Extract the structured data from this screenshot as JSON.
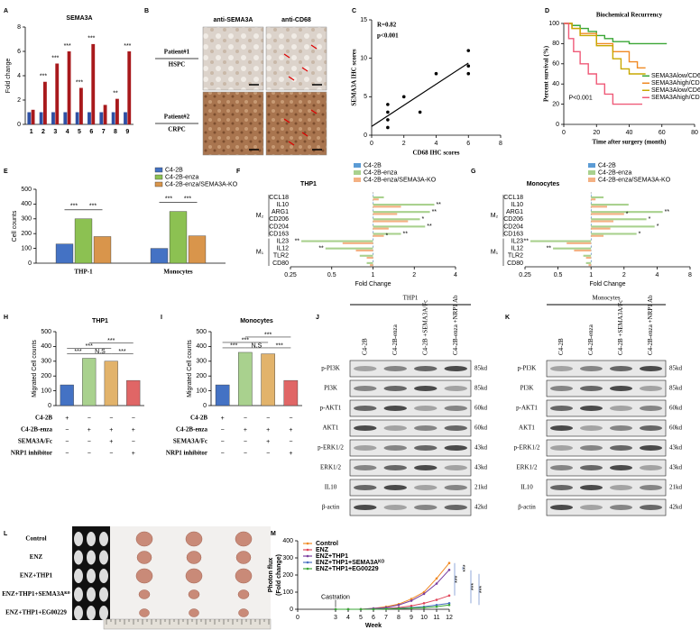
{
  "panel_letters": [
    "A",
    "B",
    "C",
    "D",
    "E",
    "F",
    "G",
    "H",
    "I",
    "J",
    "K",
    "L",
    "M"
  ],
  "chart_data": [
    {
      "type": "bar",
      "title": "SEMA3A",
      "y_label": "Fold change",
      "categories": [
        "1",
        "2",
        "3",
        "4",
        "5",
        "6",
        "7",
        "8",
        "9"
      ],
      "series": [
        {
          "color": "#2e4fa3",
          "values": [
            1,
            1,
            1,
            1,
            1,
            1,
            1,
            1,
            1
          ]
        },
        {
          "color": "#a8191c",
          "values": [
            1.2,
            3.5,
            5,
            6,
            3,
            6.6,
            1.6,
            2.1,
            6
          ]
        }
      ],
      "ylim": [
        0,
        8
      ],
      "yticks": [
        0,
        2,
        4,
        6,
        8
      ],
      "annotations": [
        {
          "category": "2",
          "text": "***"
        },
        {
          "category": "3",
          "text": "***"
        },
        {
          "category": "4",
          "text": "***"
        },
        {
          "category": "5",
          "text": "***"
        },
        {
          "category": "6",
          "text": "***"
        },
        {
          "category": "8",
          "text": "**"
        },
        {
          "category": "9",
          "text": "***"
        }
      ]
    },
    {
      "type": "scatter",
      "x_label": "CD68 IHC scores",
      "y_label": "SEMA3A IHC scores",
      "stats": [
        "R=0.82",
        "p<0.001"
      ],
      "x": [
        1,
        1,
        1,
        1,
        2,
        3,
        4,
        6,
        6,
        6
      ],
      "values": [
        1,
        2,
        3,
        4,
        5,
        3,
        8,
        11,
        9,
        8
      ],
      "xlim": [
        0,
        8
      ],
      "xticks": [
        0,
        2,
        4,
        6,
        8
      ],
      "ylim": [
        0,
        15
      ],
      "yticks": [
        0,
        5,
        10,
        15
      ],
      "trendline": true
    },
    {
      "type": "line",
      "step": true,
      "title": "Biochemical Recurrency",
      "y_label": "Percent survival (%)",
      "x_label": "Time after surgery (month)",
      "annotation": "P<0.001",
      "xlim": [
        0,
        80
      ],
      "xticks": [
        0,
        20,
        40,
        60,
        80
      ],
      "ylim": [
        0,
        100
      ],
      "yticks": [
        0,
        20,
        40,
        60,
        80,
        100
      ],
      "legend": "lower right",
      "series": [
        {
          "name": "SEMA3Alow/CD68low",
          "color": "#3aa635",
          "x": [
            0,
            5,
            10,
            15,
            20,
            25,
            30,
            40,
            50,
            63
          ],
          "values": [
            100,
            98,
            95,
            92,
            88,
            85,
            82,
            80,
            80,
            80
          ]
        },
        {
          "name": "SEMA3Ahigh/CD68low",
          "color": "#f08a24",
          "x": [
            0,
            5,
            10,
            20,
            30,
            40,
            45,
            50
          ],
          "values": [
            100,
            95,
            90,
            80,
            72,
            62,
            56,
            56
          ]
        },
        {
          "name": "SEMA3Alow/CD68high",
          "color": "#c8a800",
          "x": [
            0,
            5,
            10,
            20,
            30,
            35,
            40,
            50
          ],
          "values": [
            100,
            95,
            88,
            78,
            65,
            55,
            50,
            50
          ]
        },
        {
          "name": "SEMA3Ahigh/CD68high",
          "color": "#ef5a78",
          "x": [
            0,
            3,
            6,
            10,
            15,
            20,
            25,
            30,
            48
          ],
          "values": [
            100,
            85,
            72,
            60,
            50,
            40,
            30,
            20,
            20
          ]
        }
      ]
    },
    {
      "type": "grouped-bar",
      "y_label": "Cell counts",
      "categories": [
        "THP-1",
        "Monocytes"
      ],
      "series": [
        {
          "name": "C4-2B",
          "color": "#4472c4",
          "values": [
            130,
            100
          ]
        },
        {
          "name": "C4-2B-enza",
          "color": "#8cc152",
          "values": [
            300,
            350
          ]
        },
        {
          "name": "C4-2B-enza/SEMA3A-KO",
          "color": "#d9954b",
          "values": [
            180,
            185
          ]
        }
      ],
      "ylim": [
        0,
        500
      ],
      "yticks": [
        0,
        100,
        200,
        300,
        400,
        500
      ],
      "annotations": [
        {
          "category": "THP-1",
          "text": "***"
        },
        {
          "category": "THP-1",
          "text": "***"
        },
        {
          "category": "Monocytes",
          "text": "***"
        },
        {
          "category": "Monocytes",
          "text": "***"
        }
      ]
    },
    {
      "type": "hbar",
      "title": "THP1",
      "x_label": "Fold Change",
      "log_scale": "x",
      "groups": [
        {
          "label": "M₂",
          "categories": [
            "CCL18",
            "IL10",
            "ARG1",
            "CD206",
            "CD204",
            "CD163"
          ]
        },
        {
          "label": "M₁",
          "categories": [
            "IL23",
            "IL12",
            "TLR2",
            "CD80"
          ]
        }
      ],
      "series": [
        {
          "name": "C4-2B",
          "color": "#5b9bd5",
          "values": [
            1,
            1,
            1,
            1,
            1,
            1,
            1,
            1,
            1,
            1
          ]
        },
        {
          "name": "C4-2B-enza",
          "color": "#a9d18e",
          "values": [
            1.2,
            2.8,
            2.6,
            2.2,
            2.4,
            1.6,
            0.3,
            0.45,
            0.8,
            0.9
          ],
          "significance": [
            null,
            "**",
            "**",
            "*",
            "**",
            "**",
            "**",
            "**",
            null,
            null
          ]
        },
        {
          "name": "C4-2B-enza/SEMA3A-KO",
          "color": "#f4b183",
          "values": [
            1.1,
            1.6,
            1.5,
            1.8,
            1.3,
            1.2,
            0.6,
            0.75,
            0.9,
            0.95
          ],
          "significance": [
            null,
            null,
            null,
            null,
            null,
            "*",
            null,
            null,
            null,
            null
          ]
        }
      ],
      "xlim": [
        0.25,
        4
      ],
      "xticks": [
        0.25,
        0.5,
        1,
        2,
        4
      ]
    },
    {
      "type": "hbar",
      "title": "Monocytes",
      "x_label": "Fold Change",
      "log_scale": "x",
      "groups": [
        {
          "label": "M₂",
          "categories": [
            "CCL18",
            "IL10",
            "ARG1",
            "CD206",
            "CD204",
            "CD163"
          ]
        },
        {
          "label": "M₁",
          "categories": [
            "IL23",
            "IL12",
            "TLR2",
            "CD80"
          ]
        }
      ],
      "series": [
        {
          "name": "C4-2B",
          "color": "#5b9bd5",
          "values": [
            1,
            1,
            1,
            1,
            1,
            1,
            1,
            1,
            1,
            1
          ]
        },
        {
          "name": "C4-2B-enza",
          "color": "#a9d18e",
          "values": [
            1.3,
            2.2,
            4.5,
            3.2,
            3.8,
            2.6,
            0.28,
            0.45,
            0.85,
            0.9
          ],
          "significance": [
            null,
            null,
            "**",
            "*",
            "*",
            "*",
            "**",
            "**",
            null,
            null
          ]
        },
        {
          "name": "C4-2B-enza/SEMA3A-KO",
          "color": "#f4b183",
          "values": [
            1.1,
            1.4,
            2,
            1.6,
            1.5,
            1.3,
            0.6,
            0.7,
            0.9,
            0.95
          ],
          "significance": [
            null,
            null,
            "*",
            null,
            null,
            null,
            null,
            null,
            null,
            null
          ]
        }
      ],
      "xlim": [
        0.25,
        8
      ],
      "xticks": [
        0.25,
        0.5,
        1,
        2,
        4,
        8
      ]
    },
    {
      "type": "bar",
      "title": "THP1",
      "y_label": "Migrated Cell counts",
      "values": [
        140,
        320,
        300,
        170
      ],
      "colors": [
        "#4472c4",
        "#a9d18e",
        "#e2b36b",
        "#e06666"
      ],
      "ylim": [
        0,
        500
      ],
      "yticks": [
        0,
        100,
        200,
        300,
        400,
        500
      ],
      "annotations": [
        "***",
        "N.S",
        "***",
        "***",
        "***"
      ],
      "conditions": [
        {
          "label": "C4-2B",
          "signs": [
            "+",
            "−",
            "−",
            "−"
          ]
        },
        {
          "label": "C4-2B-enza",
          "signs": [
            "−",
            "+",
            "+",
            "+"
          ]
        },
        {
          "label": "SEMA3A/Fc",
          "signs": [
            "−",
            "−",
            "+",
            "−"
          ]
        },
        {
          "label": "NRP1 inhibitor",
          "signs": [
            "−",
            "−",
            "−",
            "+"
          ]
        }
      ]
    },
    {
      "type": "bar",
      "title": "Monocytes",
      "y_label": "Migrated Cell counts",
      "values": [
        140,
        360,
        350,
        170
      ],
      "colors": [
        "#4472c4",
        "#a9d18e",
        "#e2b36b",
        "#e06666"
      ],
      "ylim": [
        0,
        500
      ],
      "yticks": [
        0,
        100,
        200,
        300,
        400,
        500
      ],
      "annotations": [
        "***",
        "N.S",
        "***",
        "***",
        "***"
      ],
      "conditions": [
        {
          "label": "C4-2B",
          "signs": [
            "+",
            "−",
            "−",
            "−"
          ]
        },
        {
          "label": "C4-2B-enza",
          "signs": [
            "−",
            "+",
            "+",
            "+"
          ]
        },
        {
          "label": "SEMA3A/Fc",
          "signs": [
            "−",
            "−",
            "+",
            "−"
          ]
        },
        {
          "label": "NRP1 inhibitor",
          "signs": [
            "−",
            "−",
            "−",
            "+"
          ]
        }
      ]
    },
    {
      "type": "line",
      "x_label": "Week",
      "y_label": [
        "Photon flux",
        "(Fold change)"
      ],
      "annotation": "Castration",
      "significance": [
        "***",
        "***",
        "***",
        "***"
      ],
      "x": [
        3,
        4,
        5,
        6,
        7,
        8,
        9,
        10,
        11,
        12
      ],
      "xlim": [
        0,
        12
      ],
      "xticks": [
        0,
        3,
        4,
        5,
        6,
        7,
        8,
        9,
        10,
        11,
        12
      ],
      "ylim": [
        0,
        400
      ],
      "yticks": [
        0,
        100,
        200,
        300,
        400
      ],
      "series": [
        {
          "name": "Control",
          "color": "#f08a24",
          "values": [
            0,
            0,
            0,
            5,
            15,
            30,
            60,
            100,
            180,
            270
          ]
        },
        {
          "name": "ENZ",
          "color": "#e0445a",
          "values": [
            0,
            0,
            0,
            0,
            5,
            10,
            20,
            35,
            55,
            80
          ]
        },
        {
          "name": "ENZ+THP1",
          "color": "#7b3fa0",
          "values": [
            0,
            0,
            0,
            5,
            10,
            25,
            50,
            90,
            150,
            230
          ]
        },
        {
          "name": "ENZ+THP1+SEMA3Aᴷᴼ",
          "color": "#4a6fc0",
          "values": [
            0,
            0,
            0,
            0,
            3,
            6,
            10,
            15,
            25,
            35
          ]
        },
        {
          "name": "ENZ+THP1+EG00229",
          "color": "#3aa635",
          "values": [
            0,
            0,
            0,
            0,
            2,
            4,
            7,
            10,
            15,
            25
          ]
        }
      ]
    }
  ],
  "ihc": {
    "columns": [
      "anti-SEMA3A",
      "anti-CD68"
    ],
    "rows": [
      {
        "patient": "Patient#1",
        "stage": "HSPC"
      },
      {
        "patient": "Patient#2",
        "stage": "CRPC"
      }
    ]
  },
  "blots": [
    {
      "title": "THP1",
      "lanes": [
        "C4-2B",
        "C4-2B-enza",
        "C4-2B +SEMA3A/Fc",
        "C4-2B-enza +NRP1 Ab"
      ],
      "rows": [
        {
          "protein": "p-PI3K",
          "size": "85kd"
        },
        {
          "protein": "PI3K",
          "size": "85kd"
        },
        {
          "protein": "p-AKT1",
          "size": "60kd"
        },
        {
          "protein": "AKT1",
          "size": "60kd"
        },
        {
          "protein": "p-ERK1/2",
          "size": "43kd"
        },
        {
          "protein": "ERK1/2",
          "size": "43kd"
        },
        {
          "protein": "IL10",
          "size": "21kd"
        },
        {
          "protein": "β-actin",
          "size": "42kd"
        }
      ]
    },
    {
      "title": "Monocytes",
      "lanes": [
        "C4-2B",
        "C4-2B-enza",
        "C4-2B +SEMA3A/Fc",
        "C4-2B-enza +NRP1 Ab"
      ],
      "rows": [
        {
          "protein": "p-PI3K",
          "size": "85kd"
        },
        {
          "protein": "PI3K",
          "size": "85kd"
        },
        {
          "protein": "p-AKT1",
          "size": "60kd"
        },
        {
          "protein": "AKT1",
          "size": "60kd"
        },
        {
          "protein": "p-ERK1/2",
          "size": "43kd"
        },
        {
          "protein": "ERK1/2",
          "size": "43kd"
        },
        {
          "protein": "IL10",
          "size": "21kd"
        },
        {
          "protein": "β-actin",
          "size": "42kd"
        }
      ]
    }
  ],
  "xenograft": {
    "groups": [
      "Control",
      "ENZ",
      "ENZ+THP1",
      "ENZ+THP1+SEMA3Aᴷᴼ",
      "ENZ+THP1+EG00229"
    ]
  }
}
